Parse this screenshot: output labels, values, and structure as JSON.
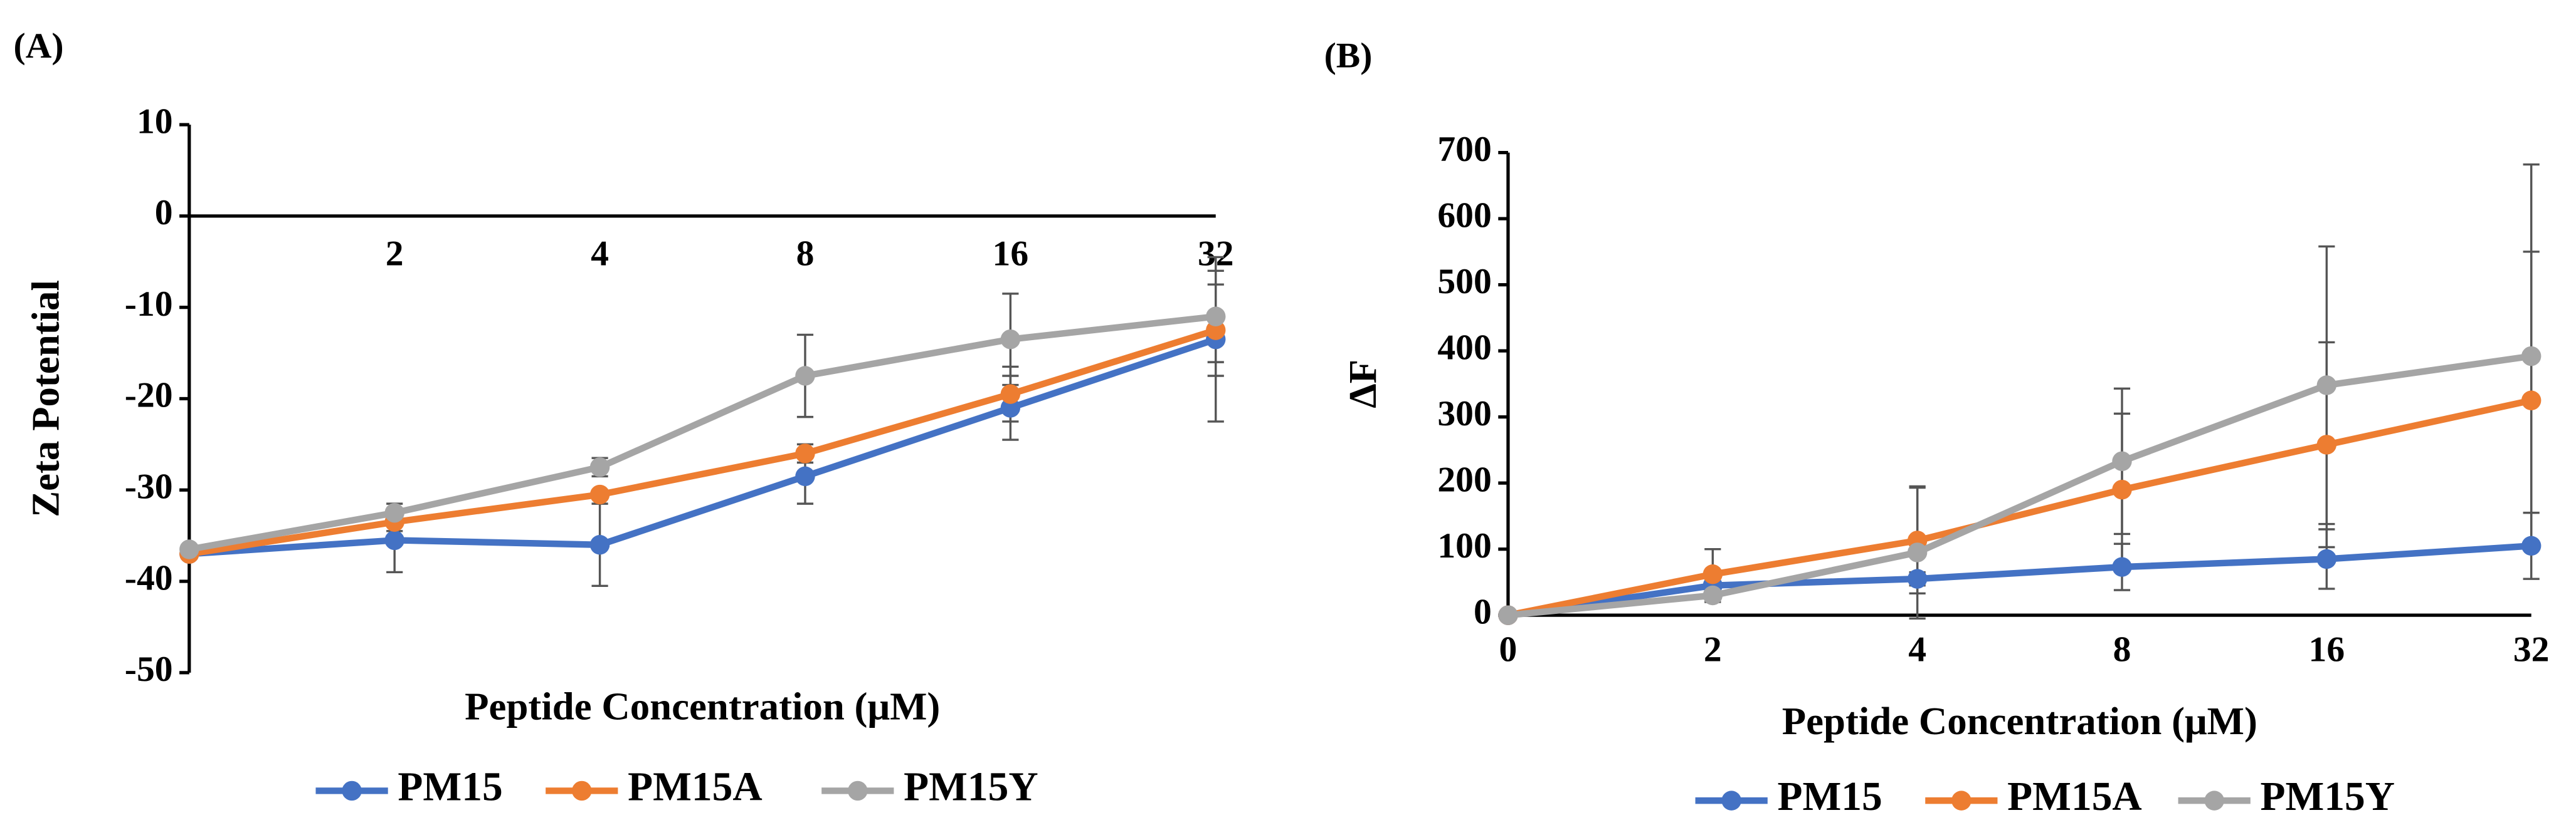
{
  "chart_data": [
    {
      "type": "line",
      "panel_label": "(A)",
      "x_label": "Peptide Concentration (μM)",
      "y_label": "Zeta Potential",
      "categories": [
        null,
        "2",
        "4",
        "8",
        "16",
        "32"
      ],
      "ylim": [
        -50,
        10
      ],
      "yticks": [
        -50,
        -40,
        -30,
        -20,
        -10,
        0,
        10
      ],
      "series": [
        {
          "name": "PM15",
          "color": "#4472c4",
          "values": [
            -37,
            -35.5,
            -36,
            -28.5,
            -21,
            -13.5
          ],
          "errors": [
            0.5,
            3.5,
            4.5,
            3,
            3.5,
            9
          ]
        },
        {
          "name": "PM15A",
          "color": "#ed7d31",
          "values": [
            -37,
            -33.5,
            -30.5,
            -26,
            -19.5,
            -12.5
          ],
          "errors": [
            0.5,
            1,
            0.5,
            1,
            3,
            5
          ]
        },
        {
          "name": "PM15Y",
          "color": "#a5a5a5",
          "values": [
            -36.5,
            -32.5,
            -27.5,
            -17.5,
            -13.5,
            -11
          ],
          "errors": [
            0.5,
            1,
            1,
            4.5,
            5,
            5
          ]
        }
      ]
    },
    {
      "type": "line",
      "panel_label": "(B)",
      "x_label": "Peptide Concentration (μM)",
      "y_label": "ΔF",
      "categories": [
        "0",
        "2",
        "4",
        "8",
        "16",
        "32"
      ],
      "ylim": [
        0,
        700
      ],
      "yticks": [
        0,
        100,
        200,
        300,
        400,
        500,
        600,
        700
      ],
      "series": [
        {
          "name": "PM15",
          "color": "#4472c4",
          "values": [
            0,
            45,
            55,
            73,
            85,
            105
          ],
          "errors": [
            0,
            8,
            10,
            35,
            45,
            50
          ]
        },
        {
          "name": "PM15A",
          "color": "#ed7d31",
          "values": [
            0,
            62,
            113,
            190,
            258,
            325
          ],
          "errors": [
            0,
            38,
            80,
            115,
            155,
            225
          ]
        },
        {
          "name": "PM15Y",
          "color": "#a5a5a5",
          "values": [
            0,
            30,
            95,
            233,
            348,
            392
          ],
          "errors": [
            0,
            10,
            100,
            110,
            210,
            290
          ]
        }
      ]
    }
  ]
}
